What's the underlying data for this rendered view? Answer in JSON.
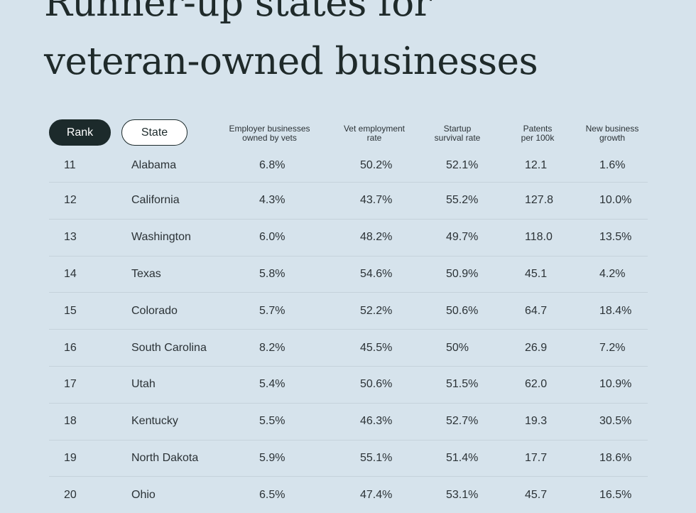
{
  "title": {
    "line1": "Runner-up states for",
    "line2": "veteran-owned businesses"
  },
  "header": {
    "rank_label": "Rank",
    "state_label": "State",
    "columns": [
      {
        "line1": "Employer businesses",
        "line2": "owned by vets"
      },
      {
        "line1": "Vet employment",
        "line2": "rate"
      },
      {
        "line1": "Startup",
        "line2": "survival rate"
      },
      {
        "line1": "Patents",
        "line2": "per 100k"
      },
      {
        "line1": "New business",
        "line2": "growth"
      }
    ]
  },
  "rows": [
    {
      "rank": "11",
      "state": "Alabama",
      "employer": "6.8%",
      "employment": "50.2%",
      "survival": "52.1%",
      "patents": "12.1",
      "growth": "1.6%"
    },
    {
      "rank": "12",
      "state": "California",
      "employer": "4.3%",
      "employment": "43.7%",
      "survival": "55.2%",
      "patents": "127.8",
      "growth": "10.0%"
    },
    {
      "rank": "13",
      "state": "Washington",
      "employer": "6.0%",
      "employment": "48.2%",
      "survival": "49.7%",
      "patents": "118.0",
      "growth": "13.5%"
    },
    {
      "rank": "14",
      "state": "Texas",
      "employer": "5.8%",
      "employment": "54.6%",
      "survival": "50.9%",
      "patents": "45.1",
      "growth": "4.2%"
    },
    {
      "rank": "15",
      "state": "Colorado",
      "employer": "5.7%",
      "employment": "52.2%",
      "survival": "50.6%",
      "patents": "64.7",
      "growth": "18.4%"
    },
    {
      "rank": "16",
      "state": "South Carolina",
      "employer": "8.2%",
      "employment": "45.5%",
      "survival": "50%",
      "patents": "26.9",
      "growth": "7.2%"
    },
    {
      "rank": "17",
      "state": "Utah",
      "employer": "5.4%",
      "employment": "50.6%",
      "survival": "51.5%",
      "patents": "62.0",
      "growth": "10.9%"
    },
    {
      "rank": "18",
      "state": "Kentucky",
      "employer": "5.5%",
      "employment": "46.3%",
      "survival": "52.7%",
      "patents": "19.3",
      "growth": "30.5%"
    },
    {
      "rank": "19",
      "state": "North Dakota",
      "employer": "5.9%",
      "employment": "55.1%",
      "survival": "51.4%",
      "patents": "17.7",
      "growth": "18.6%"
    },
    {
      "rank": "20",
      "state": "Ohio",
      "employer": "6.5%",
      "employment": "47.4%",
      "survival": "53.1%",
      "patents": "45.7",
      "growth": "16.5%"
    }
  ]
}
